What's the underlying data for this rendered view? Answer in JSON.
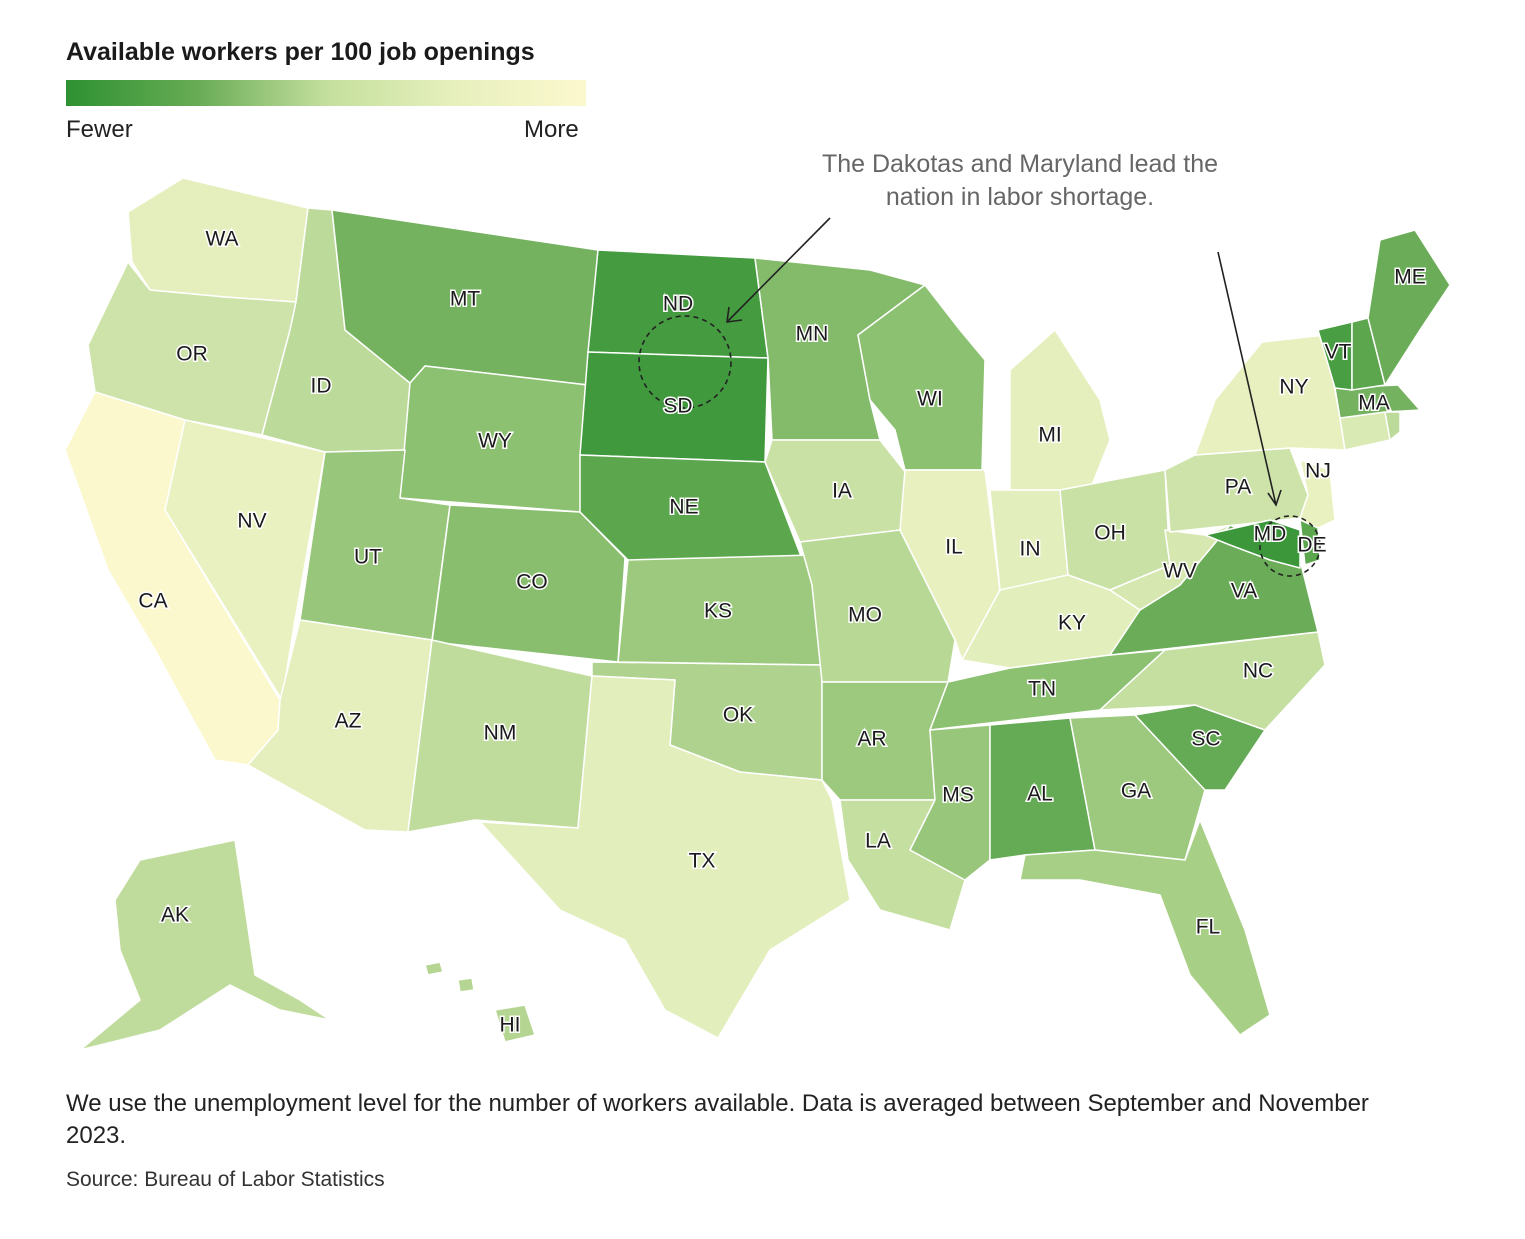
{
  "title": "Available workers per 100 job openings",
  "legend": {
    "low_label": "Fewer",
    "high_label": "More",
    "colors": [
      "#2e9131",
      "#67ab55",
      "#a7cf86",
      "#dcebb6",
      "#fcf8ce"
    ]
  },
  "annotation": {
    "line1": "The Dakotas and Maryland lead the",
    "line2": "nation in labor shortage.",
    "highlighted_states": [
      "ND",
      "SD",
      "MD"
    ]
  },
  "note": "We use the unemployment level for the number of workers available. Data is averaged between September and November 2023.",
  "source": "Source: Bureau of Labor Statistics",
  "map_data": {
    "scale": "sequential green (fewer) to pale yellow (more)",
    "states": [
      {
        "abbr": "WA",
        "level": 0.82
      },
      {
        "abbr": "OR",
        "level": 0.68
      },
      {
        "abbr": "CA",
        "level": 1.0
      },
      {
        "abbr": "NV",
        "level": 0.86
      },
      {
        "abbr": "ID",
        "level": 0.6
      },
      {
        "abbr": "MT",
        "level": 0.3
      },
      {
        "abbr": "WY",
        "level": 0.4
      },
      {
        "abbr": "UT",
        "level": 0.44
      },
      {
        "abbr": "CO",
        "level": 0.38
      },
      {
        "abbr": "AZ",
        "level": 0.82
      },
      {
        "abbr": "NM",
        "level": 0.62
      },
      {
        "abbr": "ND",
        "level": 0.1
      },
      {
        "abbr": "SD",
        "level": 0.08
      },
      {
        "abbr": "NE",
        "level": 0.2
      },
      {
        "abbr": "KS",
        "level": 0.46
      },
      {
        "abbr": "OK",
        "level": 0.54
      },
      {
        "abbr": "TX",
        "level": 0.8
      },
      {
        "abbr": "MN",
        "level": 0.36
      },
      {
        "abbr": "IA",
        "level": 0.66
      },
      {
        "abbr": "MO",
        "level": 0.58
      },
      {
        "abbr": "AR",
        "level": 0.46
      },
      {
        "abbr": "LA",
        "level": 0.64
      },
      {
        "abbr": "WI",
        "level": 0.4
      },
      {
        "abbr": "IL",
        "level": 0.84
      },
      {
        "abbr": "MI",
        "level": 0.82
      },
      {
        "abbr": "IN",
        "level": 0.8
      },
      {
        "abbr": "OH",
        "level": 0.66
      },
      {
        "abbr": "KY",
        "level": 0.8
      },
      {
        "abbr": "TN",
        "level": 0.4
      },
      {
        "abbr": "MS",
        "level": 0.44
      },
      {
        "abbr": "AL",
        "level": 0.24
      },
      {
        "abbr": "GA",
        "level": 0.46
      },
      {
        "abbr": "FL",
        "level": 0.5
      },
      {
        "abbr": "SC",
        "level": 0.24
      },
      {
        "abbr": "NC",
        "level": 0.64
      },
      {
        "abbr": "VA",
        "level": 0.26
      },
      {
        "abbr": "WV",
        "level": 0.72
      },
      {
        "abbr": "PA",
        "level": 0.68
      },
      {
        "abbr": "NY",
        "level": 0.84
      },
      {
        "abbr": "NJ",
        "level": 0.86
      },
      {
        "abbr": "MD",
        "level": 0.06
      },
      {
        "abbr": "DE",
        "level": 0.2
      },
      {
        "abbr": "CT",
        "level": 0.74
      },
      {
        "abbr": "RI",
        "level": 0.6
      },
      {
        "abbr": "MA",
        "level": 0.3
      },
      {
        "abbr": "VT",
        "level": 0.12
      },
      {
        "abbr": "NH",
        "level": 0.2
      },
      {
        "abbr": "ME",
        "level": 0.26
      },
      {
        "abbr": "AK",
        "level": 0.62
      },
      {
        "abbr": "HI",
        "level": 0.56
      }
    ]
  }
}
